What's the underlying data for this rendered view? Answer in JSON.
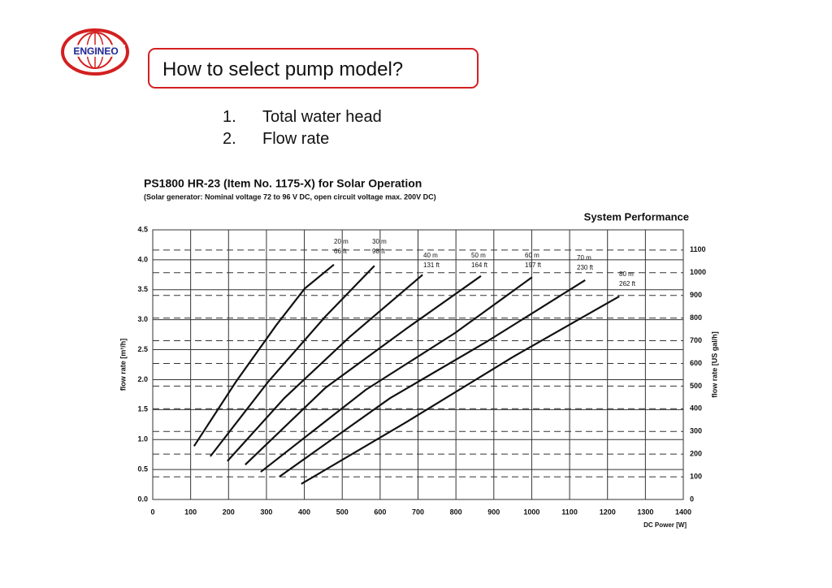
{
  "slide": {
    "logo": "ENGINEO",
    "title": "How to select pump model?",
    "list": [
      {
        "num": "1.",
        "text": "Total water head"
      },
      {
        "num": "2.",
        "text": "Flow rate"
      }
    ]
  },
  "chart_data": {
    "type": "line",
    "title": "PS1800 HR-23 (Item No. 1175-X) for Solar Operation",
    "subtitle": "(Solar generator: Nominal voltage  72  to 96 V DC, open circuit voltage max. 200V DC)",
    "annotation": "System Performance",
    "xlabel": "DC Power [W]",
    "ylabel": "flow rate [m³/h]",
    "y2label": "flow rate [US gal/h]",
    "xlim": [
      0,
      1400
    ],
    "xticks": [
      0,
      100,
      200,
      300,
      400,
      500,
      600,
      700,
      800,
      900,
      1000,
      1100,
      1200,
      1300,
      1400
    ],
    "ylim": [
      0,
      4.5
    ],
    "yticks": [
      {
        "value": 0,
        "label": "0.0"
      },
      0.5,
      {
        "value": 1,
        "label": "1.0"
      },
      1.5,
      {
        "value": 2,
        "label": "2.0"
      },
      2.5,
      {
        "value": 3,
        "label": "3.0"
      },
      3.5,
      {
        "value": 4,
        "label": "4.0"
      },
      4.5
    ],
    "y2lim": [
      0,
      1189
    ],
    "y2ticks": [
      0,
      100,
      200,
      300,
      400,
      500,
      600,
      700,
      800,
      900,
      1000,
      1100
    ],
    "grid": true,
    "color": "#111111",
    "series": [
      {
        "name": "20 m",
        "feet": "66 ft",
        "x": [
          109,
          219,
          326,
          401,
          478
        ],
        "values": [
          0.89,
          1.96,
          2.91,
          3.52,
          3.92
        ]
      },
      {
        "name": "30 m",
        "feet": "98 ft",
        "x": [
          152,
          304,
          455,
          585
        ],
        "values": [
          0.72,
          1.96,
          3.05,
          3.9
        ]
      },
      {
        "name": "40 m",
        "feet": "131 ft",
        "x": [
          197,
          347,
          519,
          712
        ],
        "values": [
          0.64,
          1.69,
          2.71,
          3.75
        ]
      },
      {
        "name": "50 m",
        "feet": "164 ft",
        "x": [
          244,
          455,
          669,
          866
        ],
        "values": [
          0.58,
          1.86,
          2.85,
          3.73
        ]
      },
      {
        "name": "60 m",
        "feet": "197 ft",
        "x": [
          285,
          562,
          798,
          1001
        ],
        "values": [
          0.46,
          1.83,
          2.78,
          3.71
        ]
      },
      {
        "name": "70 m",
        "feet": "230 ft",
        "x": [
          334,
          626,
          883,
          1141
        ],
        "values": [
          0.38,
          1.69,
          2.64,
          3.66
        ]
      },
      {
        "name": "80 m",
        "feet": "262 ft",
        "x": [
          392,
          669,
          948,
          1231
        ],
        "values": [
          0.26,
          1.29,
          2.37,
          3.39
        ]
      }
    ]
  }
}
